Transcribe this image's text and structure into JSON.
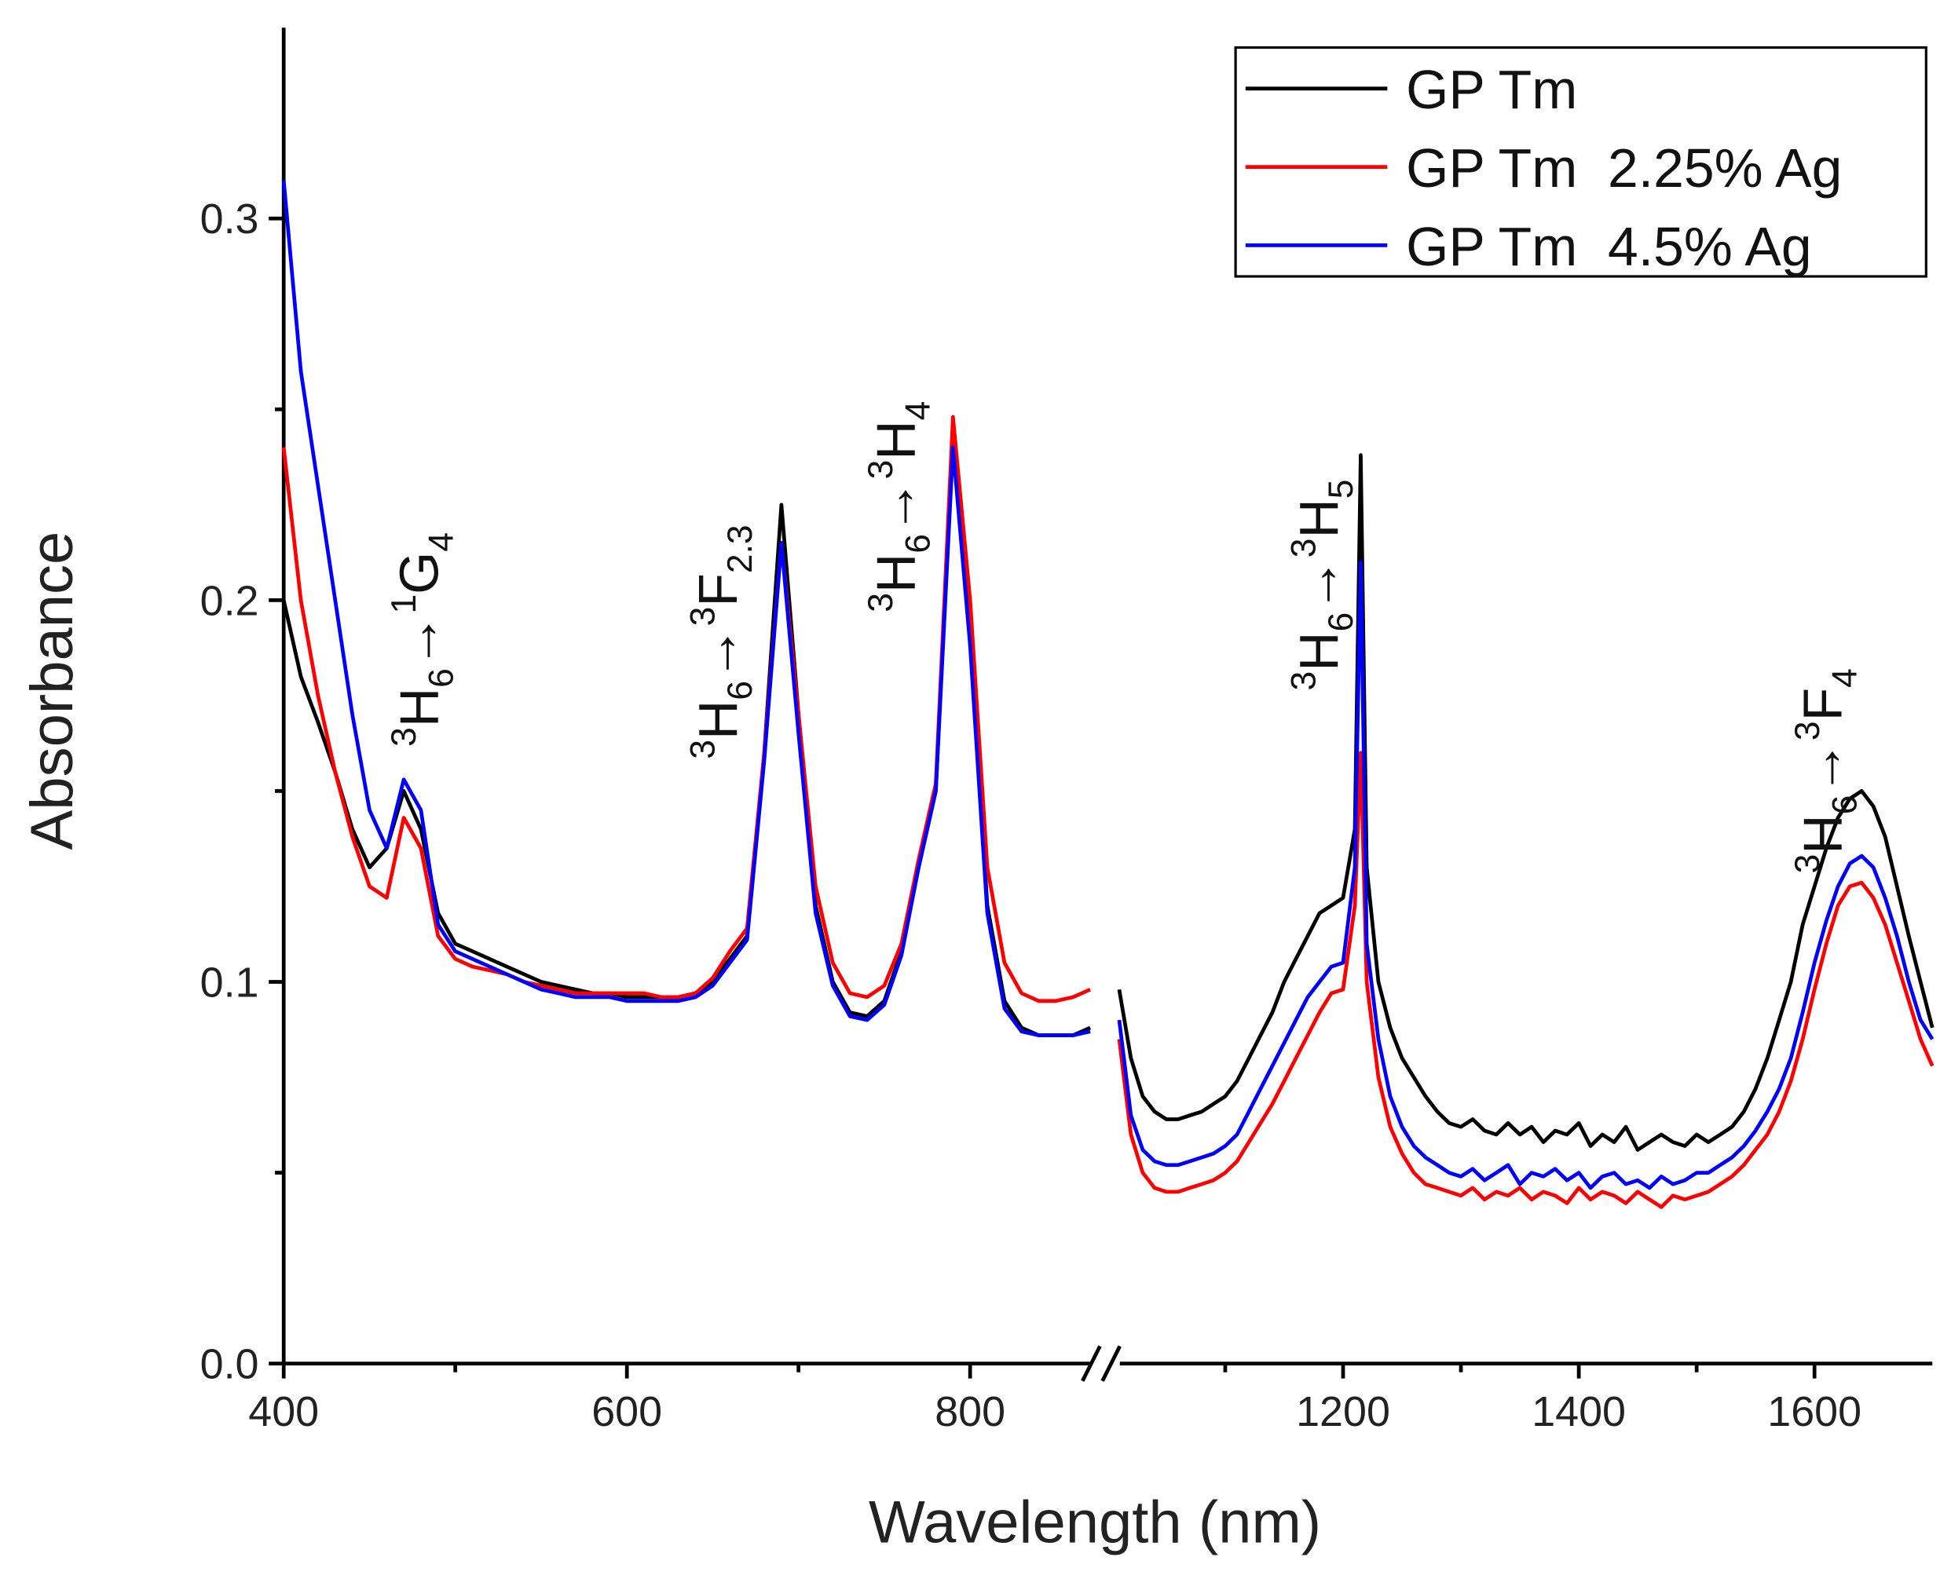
{
  "chart_data": {
    "type": "line",
    "xlabel": "Wavelength (nm)",
    "ylabel": "Absorbance",
    "xlim": [
      400,
      1700
    ],
    "x_break": [
      880,
      1000
    ],
    "ylim": [
      0,
      0.35
    ],
    "xticks": [
      400,
      600,
      800,
      1200,
      1400,
      1600
    ],
    "xminor": [
      500,
      700,
      1100,
      1300,
      1500
    ],
    "yticks": [
      {
        "value": 0,
        "label": "0.0"
      },
      0.1,
      0.2,
      0.3
    ],
    "yminor": [
      0.05,
      0.15,
      0.25
    ],
    "legend": "upper right",
    "x": [
      400,
      410,
      420,
      430,
      440,
      450,
      460,
      470,
      480,
      490,
      500,
      510,
      520,
      530,
      540,
      550,
      560,
      570,
      580,
      590,
      600,
      610,
      620,
      630,
      640,
      650,
      660,
      670,
      680,
      690,
      700,
      710,
      720,
      730,
      740,
      750,
      760,
      770,
      780,
      790,
      800,
      810,
      820,
      830,
      840,
      850,
      860,
      870,
      940,
      1010,
      1020,
      1030,
      1040,
      1050,
      1060,
      1070,
      1080,
      1090,
      1100,
      1110,
      1120,
      1130,
      1140,
      1150,
      1160,
      1170,
      1180,
      1190,
      1200,
      1210,
      1215,
      1220,
      1230,
      1240,
      1250,
      1260,
      1270,
      1280,
      1290,
      1300,
      1310,
      1320,
      1330,
      1340,
      1350,
      1360,
      1370,
      1380,
      1390,
      1400,
      1410,
      1420,
      1430,
      1440,
      1450,
      1460,
      1470,
      1480,
      1490,
      1500,
      1510,
      1520,
      1530,
      1540,
      1550,
      1560,
      1570,
      1580,
      1590,
      1600,
      1610,
      1620,
      1630,
      1640,
      1650,
      1660,
      1670,
      1680,
      1690,
      1700
    ],
    "series": [
      {
        "name": "GP Tm",
        "color": "#000000",
        "values": [
          0.2,
          0.18,
          0.168,
          0.155,
          0.14,
          0.13,
          0.135,
          0.15,
          0.14,
          0.118,
          0.11,
          0.108,
          0.106,
          0.104,
          0.102,
          0.1,
          0.099,
          0.098,
          0.097,
          0.097,
          0.096,
          0.096,
          0.096,
          0.096,
          0.097,
          0.1,
          0.106,
          0.112,
          0.16,
          0.225,
          0.17,
          0.12,
          0.1,
          0.092,
          0.091,
          0.095,
          0.108,
          0.13,
          0.15,
          0.245,
          0.19,
          0.12,
          0.095,
          0.088,
          0.086,
          0.086,
          0.086,
          0.088,
          null,
          0.098,
          0.08,
          0.07,
          0.066,
          0.064,
          0.064,
          0.065,
          0.066,
          0.068,
          0.07,
          0.074,
          0.08,
          0.086,
          0.092,
          0.1,
          0.106,
          0.112,
          0.118,
          0.12,
          0.122,
          0.14,
          0.238,
          0.13,
          0.1,
          0.088,
          0.08,
          0.075,
          0.07,
          0.066,
          0.063,
          0.062,
          0.064,
          0.061,
          0.06,
          0.063,
          0.06,
          0.062,
          0.058,
          0.061,
          0.06,
          0.063,
          0.057,
          0.06,
          0.058,
          0.062,
          0.056,
          0.058,
          0.06,
          0.058,
          0.057,
          0.06,
          0.058,
          0.06,
          0.062,
          0.066,
          0.072,
          0.08,
          0.09,
          0.1,
          0.115,
          0.125,
          0.135,
          0.143,
          0.148,
          0.15,
          0.146,
          0.138,
          0.125,
          0.112,
          0.1,
          0.088
        ]
      },
      {
        "name": "GP Tm  2.25% Ag",
        "color": "#ff0000",
        "values": [
          0.24,
          0.2,
          0.175,
          0.155,
          0.138,
          0.125,
          0.122,
          0.143,
          0.135,
          0.112,
          0.106,
          0.104,
          0.103,
          0.102,
          0.1,
          0.099,
          0.098,
          0.097,
          0.097,
          0.097,
          0.097,
          0.097,
          0.096,
          0.096,
          0.097,
          0.101,
          0.108,
          0.114,
          0.16,
          0.215,
          0.17,
          0.125,
          0.105,
          0.097,
          0.096,
          0.099,
          0.11,
          0.132,
          0.152,
          0.248,
          0.2,
          0.13,
          0.105,
          0.097,
          0.095,
          0.095,
          0.096,
          0.098,
          null,
          0.085,
          0.06,
          0.05,
          0.046,
          0.045,
          0.045,
          0.046,
          0.047,
          0.048,
          0.05,
          0.053,
          0.058,
          0.063,
          0.068,
          0.074,
          0.08,
          0.086,
          0.092,
          0.097,
          0.098,
          0.12,
          0.16,
          0.1,
          0.075,
          0.062,
          0.055,
          0.05,
          0.047,
          0.046,
          0.045,
          0.044,
          0.046,
          0.043,
          0.045,
          0.044,
          0.046,
          0.043,
          0.045,
          0.044,
          0.042,
          0.046,
          0.043,
          0.045,
          0.044,
          0.042,
          0.045,
          0.043,
          0.041,
          0.044,
          0.043,
          0.044,
          0.045,
          0.047,
          0.049,
          0.052,
          0.056,
          0.06,
          0.066,
          0.074,
          0.085,
          0.098,
          0.11,
          0.12,
          0.125,
          0.126,
          0.122,
          0.115,
          0.105,
          0.095,
          0.085,
          0.078
        ]
      },
      {
        "name": "GP Tm  4.5% Ag",
        "color": "#0000ff",
        "values": [
          0.31,
          0.26,
          0.23,
          0.2,
          0.17,
          0.145,
          0.135,
          0.153,
          0.145,
          0.115,
          0.108,
          0.106,
          0.104,
          0.102,
          0.1,
          0.098,
          0.097,
          0.096,
          0.096,
          0.096,
          0.095,
          0.095,
          0.095,
          0.095,
          0.096,
          0.099,
          0.105,
          0.111,
          0.158,
          0.215,
          0.165,
          0.118,
          0.099,
          0.091,
          0.09,
          0.094,
          0.107,
          0.13,
          0.15,
          0.24,
          0.188,
          0.118,
          0.093,
          0.087,
          0.086,
          0.086,
          0.086,
          0.087,
          null,
          0.09,
          0.065,
          0.056,
          0.053,
          0.052,
          0.052,
          0.053,
          0.054,
          0.055,
          0.057,
          0.06,
          0.066,
          0.072,
          0.078,
          0.084,
          0.09,
          0.096,
          0.1,
          0.104,
          0.105,
          0.13,
          0.21,
          0.11,
          0.085,
          0.07,
          0.062,
          0.057,
          0.054,
          0.052,
          0.05,
          0.049,
          0.051,
          0.048,
          0.05,
          0.052,
          0.047,
          0.05,
          0.049,
          0.051,
          0.048,
          0.05,
          0.046,
          0.049,
          0.05,
          0.047,
          0.048,
          0.046,
          0.049,
          0.047,
          0.048,
          0.05,
          0.05,
          0.052,
          0.054,
          0.057,
          0.061,
          0.066,
          0.072,
          0.08,
          0.092,
          0.105,
          0.116,
          0.125,
          0.131,
          0.133,
          0.13,
          0.122,
          0.112,
          0.1,
          0.09,
          0.085
        ]
      }
    ],
    "annotations": [
      [
        {
          "text": "3",
          "style": "sup"
        },
        {
          "text": "H",
          "style": "main"
        },
        {
          "text": "6",
          "style": "sub"
        },
        {
          "text": "→",
          "style": "main"
        },
        {
          "text": "1",
          "style": "sup"
        },
        {
          "text": "G",
          "style": "main"
        },
        {
          "text": "4",
          "style": "sub"
        }
      ],
      [
        {
          "text": "3",
          "style": "sup"
        },
        {
          "text": "H",
          "style": "main"
        },
        {
          "text": "6",
          "style": "sub"
        },
        {
          "text": "→",
          "style": "main"
        },
        {
          "text": "3",
          "style": "sup"
        },
        {
          "text": "F",
          "style": "main"
        },
        {
          "text": "2.3",
          "style": "sub"
        }
      ],
      [
        {
          "text": "3",
          "style": "sup"
        },
        {
          "text": "H",
          "style": "main"
        },
        {
          "text": "6",
          "style": "sub"
        },
        {
          "text": "→",
          "style": "main"
        },
        {
          "text": "3",
          "style": "sup"
        },
        {
          "text": "H",
          "style": "main"
        },
        {
          "text": "4",
          "style": "sub"
        }
      ],
      [
        {
          "text": "3",
          "style": "sup"
        },
        {
          "text": "H",
          "style": "main"
        },
        {
          "text": "6",
          "style": "sub"
        },
        {
          "text": "→",
          "style": "main"
        },
        {
          "text": "3",
          "style": "sup"
        },
        {
          "text": "H",
          "style": "main"
        },
        {
          "text": "5",
          "style": "sub"
        }
      ],
      [
        {
          "text": "3",
          "style": "sup"
        },
        {
          "text": "H",
          "style": "main"
        },
        {
          "text": "6",
          "style": "sub"
        },
        {
          "text": "→",
          "style": "main"
        },
        {
          "text": "3",
          "style": "sup"
        },
        {
          "text": "F",
          "style": "main"
        },
        {
          "text": "4",
          "style": "sub"
        }
      ]
    ]
  }
}
